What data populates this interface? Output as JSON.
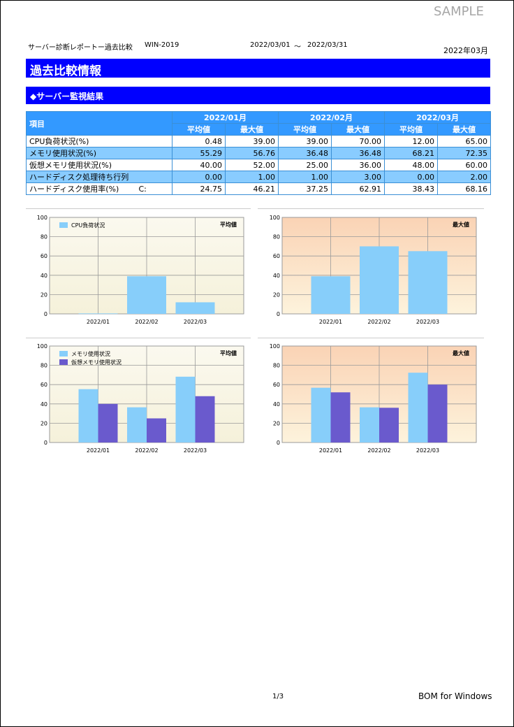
{
  "watermark": "SAMPLE",
  "header": {
    "report_title": "サーバー診断レポートー過去比較",
    "server": "WIN-2019",
    "period_start": "2022/03/01",
    "period_sep": "～",
    "period_end": "2022/03/31",
    "month": "2022年03月"
  },
  "section_title": "過去比較情報",
  "subsection_title": "◆サーバー監視結果",
  "table": {
    "item_header": "項目",
    "months": [
      "2022/01月",
      "2022/02月",
      "2022/03月"
    ],
    "avg_label": "平均値",
    "max_label": "最大値",
    "rows": [
      {
        "label": "CPU負荷状況(%)",
        "sub": "",
        "values": [
          "0.48",
          "39.00",
          "39.00",
          "70.00",
          "12.00",
          "65.00"
        ]
      },
      {
        "label": "メモリ使用状況(%)",
        "sub": "",
        "values": [
          "55.29",
          "56.76",
          "36.48",
          "36.48",
          "68.21",
          "72.35"
        ]
      },
      {
        "label": "仮想メモリ使用状況(%)",
        "sub": "",
        "values": [
          "40.00",
          "52.00",
          "25.00",
          "36.00",
          "48.00",
          "60.00"
        ]
      },
      {
        "label": "ハードディスク処理待ち行列",
        "sub": "",
        "values": [
          "0.00",
          "1.00",
          "1.00",
          "3.00",
          "0.00",
          "2.00"
        ]
      },
      {
        "label": "ハードディスク使用率(%)",
        "sub": "C:",
        "values": [
          "24.75",
          "46.21",
          "37.25",
          "62.91",
          "38.43",
          "68.16"
        ]
      }
    ]
  },
  "chart_data": [
    {
      "type": "bar",
      "title": "平均値",
      "categories": [
        "2022/01",
        "2022/02",
        "2022/03"
      ],
      "series": [
        {
          "name": "CPU負荷状況",
          "values": [
            0.48,
            39.0,
            12.0
          ]
        }
      ],
      "ylim": [
        0,
        100
      ],
      "yticks": [
        0,
        20,
        40,
        60,
        80,
        100
      ],
      "grid": true,
      "legend": "top-left",
      "background": "light-yellow-gradient",
      "colors": [
        "#87cefa"
      ]
    },
    {
      "type": "bar",
      "title": "最大値",
      "categories": [
        "2022/01",
        "2022/02",
        "2022/03"
      ],
      "series": [
        {
          "values": [
            39.0,
            70.0,
            65.0
          ]
        }
      ],
      "ylim": [
        0,
        100
      ],
      "yticks": [
        0,
        20,
        40,
        60,
        80,
        100
      ],
      "grid": true,
      "legend": "none",
      "background": "peach-gradient",
      "colors": [
        "#87cefa"
      ]
    },
    {
      "type": "bar",
      "title": "平均値",
      "categories": [
        "2022/01",
        "2022/02",
        "2022/03"
      ],
      "series": [
        {
          "name": "メモリ使用状況",
          "values": [
            55.29,
            36.48,
            68.21
          ]
        },
        {
          "name": "仮想メモリ使用状況",
          "values": [
            40.0,
            25.0,
            48.0
          ]
        }
      ],
      "ylim": [
        0,
        100
      ],
      "yticks": [
        0,
        20,
        40,
        60,
        80,
        100
      ],
      "grid": true,
      "legend": "top-left",
      "background": "light-yellow-gradient",
      "colors": [
        "#87cefa",
        "#6a5acd"
      ]
    },
    {
      "type": "bar",
      "title": "最大値",
      "categories": [
        "2022/01",
        "2022/02",
        "2022/03"
      ],
      "series": [
        {
          "values": [
            56.76,
            36.48,
            72.35
          ]
        },
        {
          "values": [
            52.0,
            36.0,
            60.0
          ]
        }
      ],
      "ylim": [
        0,
        100
      ],
      "yticks": [
        0,
        20,
        40,
        60,
        80,
        100
      ],
      "grid": true,
      "legend": "none",
      "background": "peach-gradient",
      "colors": [
        "#87cefa",
        "#6a5acd"
      ]
    }
  ],
  "footer": {
    "page": "1/3",
    "brand": "BOM for Windows"
  }
}
